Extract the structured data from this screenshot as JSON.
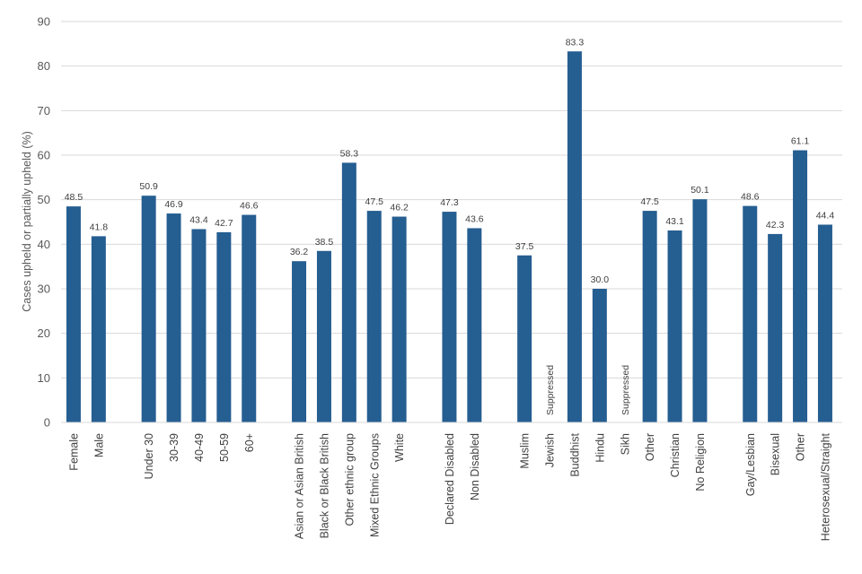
{
  "chart_data": {
    "type": "bar",
    "ylabel": "Cases upheld or partially upheld (%)",
    "xlabel": "",
    "ylim": [
      0,
      90
    ],
    "yticks": [
      0,
      10,
      20,
      30,
      40,
      50,
      60,
      70,
      80,
      90
    ],
    "grid": true,
    "legend": "none",
    "bar_color": "#255e91",
    "gridline_color": "#d9d9d9",
    "groups": [
      {
        "categories": [
          "Female",
          "Male"
        ],
        "values": [
          48.5,
          41.8
        ],
        "labels": [
          "48.5",
          "41.8"
        ]
      },
      {
        "categories": [
          "Under 30",
          "30-39",
          "40-49",
          "50-59",
          "60+"
        ],
        "values": [
          50.9,
          46.9,
          43.4,
          42.7,
          46.6
        ],
        "labels": [
          "50.9",
          "46.9",
          "43.4",
          "42.7",
          "46.6"
        ]
      },
      {
        "categories": [
          "Asian or Asian British",
          "Black or Black British",
          "Other ethnic group",
          "Mixed Ethnic Groups",
          "White"
        ],
        "values": [
          36.2,
          38.5,
          58.3,
          47.5,
          46.2
        ],
        "labels": [
          "36.2",
          "38.5",
          "58.3",
          "47.5",
          "46.2"
        ]
      },
      {
        "categories": [
          "Declared Disabled",
          "Non Disabled"
        ],
        "values": [
          47.3,
          43.6
        ],
        "labels": [
          "47.3",
          "43.6"
        ]
      },
      {
        "categories": [
          "Muslim",
          "Jewish",
          "Buddhist",
          "Hindu",
          "Sikh",
          "Other",
          "Christian",
          "No Religion"
        ],
        "values": [
          37.5,
          null,
          83.3,
          30.0,
          null,
          47.5,
          43.1,
          50.1
        ],
        "labels": [
          "37.5",
          "Suppressed",
          "83.3",
          "30.0",
          "Suppressed",
          "47.5",
          "43.1",
          "50.1"
        ]
      },
      {
        "categories": [
          "Gay/Lesbian",
          "Bisexual",
          "Other",
          "Heterosexual/Straight"
        ],
        "values": [
          48.6,
          42.3,
          61.1,
          44.4
        ],
        "labels": [
          "48.6",
          "42.3",
          "61.1",
          "44.4"
        ]
      }
    ]
  }
}
